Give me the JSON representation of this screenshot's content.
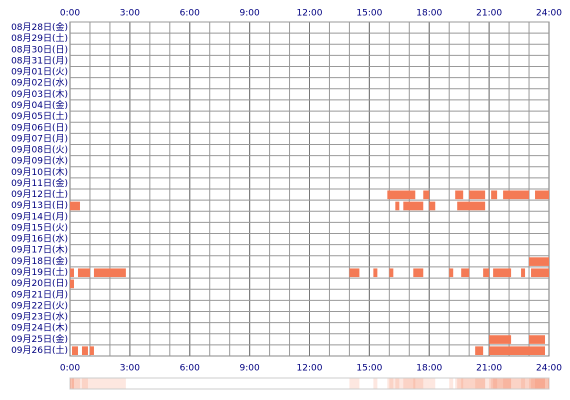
{
  "chart_data": {
    "type": "timeline",
    "xlim": [
      0,
      24
    ],
    "xticks": [
      {
        "value": 0,
        "label": "0:00"
      },
      {
        "value": 3,
        "label": "3:00"
      },
      {
        "value": 6,
        "label": "6:00"
      },
      {
        "value": 9,
        "label": "9:00"
      },
      {
        "value": 12,
        "label": "12:00"
      },
      {
        "value": 15,
        "label": "15:00"
      },
      {
        "value": 18,
        "label": "18:00"
      },
      {
        "value": 21,
        "label": "21:00"
      },
      {
        "value": 24,
        "label": "24:00"
      }
    ],
    "color": "#f47a55",
    "rows": [
      {
        "label": "08月28日(金)",
        "segments": []
      },
      {
        "label": "08月29日(土)",
        "segments": []
      },
      {
        "label": "08月30日(日)",
        "segments": []
      },
      {
        "label": "08月31日(月)",
        "segments": []
      },
      {
        "label": "09月01日(火)",
        "segments": []
      },
      {
        "label": "09月02日(水)",
        "segments": []
      },
      {
        "label": "09月03日(木)",
        "segments": []
      },
      {
        "label": "09月04日(金)",
        "segments": []
      },
      {
        "label": "09月05日(土)",
        "segments": []
      },
      {
        "label": "09月06日(日)",
        "segments": []
      },
      {
        "label": "09月07日(月)",
        "segments": []
      },
      {
        "label": "09月08日(火)",
        "segments": []
      },
      {
        "label": "09月09日(水)",
        "segments": []
      },
      {
        "label": "09月10日(木)",
        "segments": []
      },
      {
        "label": "09月11日(金)",
        "segments": []
      },
      {
        "label": "09月12日(土)",
        "segments": [
          [
            15.9,
            17.3
          ],
          [
            17.7,
            18.0
          ],
          [
            19.3,
            19.7
          ],
          [
            20.0,
            20.8
          ],
          [
            21.1,
            21.4
          ],
          [
            21.7,
            23.0
          ],
          [
            23.3,
            24
          ]
        ]
      },
      {
        "label": "09月13日(日)",
        "segments": [
          [
            0,
            0.5
          ],
          [
            16.3,
            16.5
          ],
          [
            16.7,
            17.7
          ],
          [
            18.0,
            18.3
          ],
          [
            19.4,
            20.8
          ]
        ]
      },
      {
        "label": "09月14日(月)",
        "segments": []
      },
      {
        "label": "09月15日(火)",
        "segments": []
      },
      {
        "label": "09月16日(水)",
        "segments": []
      },
      {
        "label": "09月17日(木)",
        "segments": []
      },
      {
        "label": "09月18日(金)",
        "segments": [
          [
            23.0,
            24
          ]
        ]
      },
      {
        "label": "09月19日(土)",
        "segments": [
          [
            0,
            0.2
          ],
          [
            0.4,
            1.0
          ],
          [
            1.2,
            2.8
          ],
          [
            14.0,
            14.5
          ],
          [
            15.2,
            15.4
          ],
          [
            16.0,
            16.2
          ],
          [
            17.2,
            17.7
          ],
          [
            19.0,
            19.2
          ],
          [
            19.6,
            20.0
          ],
          [
            20.7,
            21.0
          ],
          [
            21.2,
            22.1
          ],
          [
            22.6,
            22.8
          ],
          [
            23.1,
            24
          ]
        ]
      },
      {
        "label": "09月20日(日)",
        "segments": [
          [
            0,
            0.2
          ]
        ]
      },
      {
        "label": "09月21日(月)",
        "segments": []
      },
      {
        "label": "09月22日(火)",
        "segments": []
      },
      {
        "label": "09月23日(水)",
        "segments": []
      },
      {
        "label": "09月24日(木)",
        "segments": []
      },
      {
        "label": "09月25日(金)",
        "segments": [
          [
            21.0,
            22.1
          ],
          [
            23.0,
            23.8
          ]
        ]
      },
      {
        "label": "09月26日(土)",
        "segments": [
          [
            0.1,
            0.4
          ],
          [
            0.6,
            0.9
          ],
          [
            1.0,
            1.2
          ],
          [
            20.3,
            20.7
          ],
          [
            21.0,
            23.8
          ]
        ]
      }
    ]
  }
}
